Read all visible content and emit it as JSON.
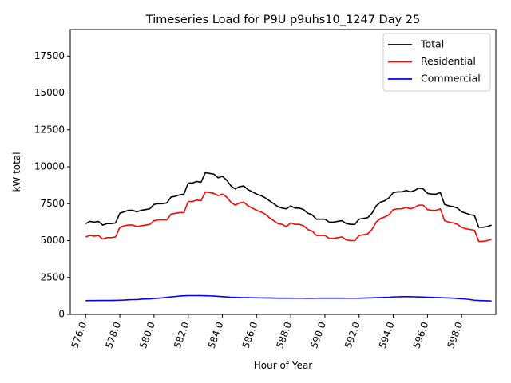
{
  "chart_data": {
    "type": "line",
    "title": "Timeseries Load for P9U p9uhs10_1247  Day 25",
    "xlabel": "Hour of Year",
    "ylabel": "kW total",
    "xlim": [
      575.1,
      600.0
    ],
    "ylim": [
      0,
      19300
    ],
    "xticks": [
      576,
      578,
      580,
      582,
      584,
      586,
      588,
      590,
      592,
      594,
      596,
      598
    ],
    "xtick_labels": [
      "576.0",
      "578.0",
      "580.0",
      "582.0",
      "584.0",
      "586.0",
      "588.0",
      "590.0",
      "592.0",
      "594.0",
      "596.0",
      "598.0"
    ],
    "yticks": [
      0,
      2500,
      5000,
      7500,
      10000,
      12500,
      15000,
      17500
    ],
    "ytick_labels": [
      "0",
      "2500",
      "5000",
      "7500",
      "10000",
      "12500",
      "15000",
      "17500"
    ],
    "legend_position": "top-right",
    "x_start": 576.0,
    "x_step": 0.25,
    "series": [
      {
        "name": "Total",
        "color": "#000000",
        "values": [
          6150,
          6300,
          6250,
          6300,
          6050,
          6150,
          6150,
          6200,
          6850,
          6950,
          7050,
          7050,
          6950,
          7050,
          7100,
          7150,
          7450,
          7500,
          7500,
          7550,
          7950,
          8000,
          8100,
          8150,
          8900,
          8900,
          9000,
          8950,
          9600,
          9550,
          9500,
          9250,
          9350,
          9100,
          8700,
          8500,
          8650,
          8700,
          8450,
          8300,
          8150,
          8050,
          7900,
          7700,
          7500,
          7300,
          7200,
          7150,
          7350,
          7200,
          7200,
          7100,
          6850,
          6750,
          6450,
          6450,
          6450,
          6250,
          6250,
          6300,
          6350,
          6150,
          6100,
          6100,
          6450,
          6500,
          6550,
          6850,
          7350,
          7600,
          7700,
          7900,
          8250,
          8300,
          8300,
          8400,
          8300,
          8400,
          8550,
          8500,
          8200,
          8150,
          8150,
          8250,
          7450,
          7350,
          7300,
          7200,
          6950,
          6850,
          6750,
          6700,
          5900,
          5900,
          5950,
          6050
        ]
      },
      {
        "name": "Residential",
        "color": "#ff0000",
        "values": [
          5250,
          5350,
          5300,
          5350,
          5100,
          5200,
          5200,
          5250,
          5900,
          6000,
          6050,
          6050,
          5950,
          6000,
          6050,
          6100,
          6350,
          6400,
          6400,
          6400,
          6800,
          6850,
          6900,
          6900,
          7650,
          7650,
          7750,
          7700,
          8300,
          8250,
          8200,
          8050,
          8150,
          7950,
          7600,
          7400,
          7550,
          7600,
          7350,
          7200,
          7050,
          6950,
          6800,
          6550,
          6350,
          6150,
          6100,
          5950,
          6200,
          6100,
          6100,
          6000,
          5750,
          5650,
          5350,
          5350,
          5350,
          5150,
          5150,
          5200,
          5250,
          5050,
          5000,
          5000,
          5350,
          5400,
          5450,
          5750,
          6250,
          6500,
          6600,
          6750,
          7100,
          7150,
          7150,
          7250,
          7150,
          7250,
          7400,
          7400,
          7100,
          7050,
          7050,
          7150,
          6350,
          6250,
          6200,
          6100,
          5900,
          5800,
          5750,
          5700,
          4950,
          4950,
          5000,
          5100
        ]
      },
      {
        "name": "Commercial",
        "color": "#0000ff",
        "values": [
          930,
          935,
          935,
          940,
          940,
          945,
          945,
          950,
          960,
          970,
          990,
          1000,
          1000,
          1030,
          1040,
          1050,
          1080,
          1100,
          1120,
          1150,
          1180,
          1210,
          1240,
          1260,
          1270,
          1270,
          1270,
          1270,
          1260,
          1250,
          1240,
          1220,
          1200,
          1180,
          1160,
          1150,
          1140,
          1135,
          1130,
          1125,
          1120,
          1115,
          1110,
          1110,
          1105,
          1100,
          1100,
          1100,
          1100,
          1095,
          1095,
          1095,
          1090,
          1090,
          1095,
          1100,
          1100,
          1100,
          1100,
          1100,
          1100,
          1095,
          1095,
          1095,
          1100,
          1105,
          1110,
          1120,
          1130,
          1140,
          1150,
          1160,
          1180,
          1190,
          1200,
          1200,
          1200,
          1190,
          1180,
          1170,
          1160,
          1150,
          1140,
          1130,
          1120,
          1110,
          1100,
          1080,
          1060,
          1040,
          1000,
          960,
          940,
          930,
          920,
          910
        ]
      }
    ]
  }
}
